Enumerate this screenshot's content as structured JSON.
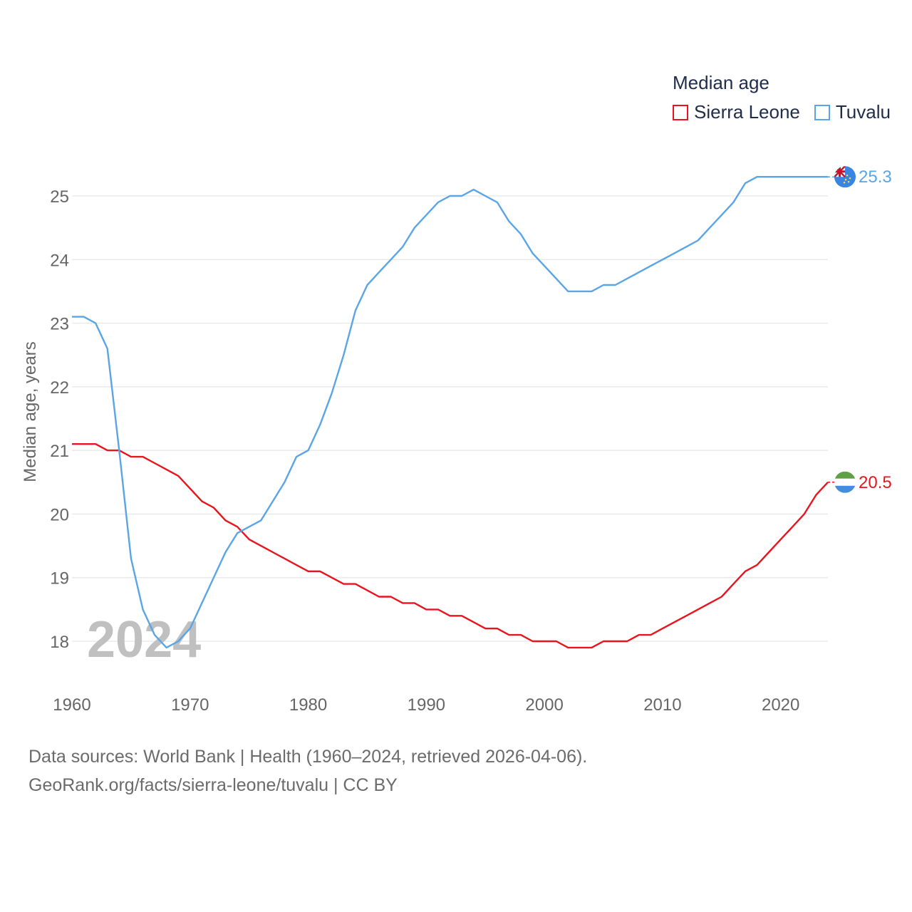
{
  "legend": {
    "title": "Median age"
  },
  "source": {
    "line1": "Data sources: World Bank | Health (1960–2024, retrieved 2026-04-06).",
    "line2": "GeoRank.org/facts/sierra-leone/tuvalu | CC BY"
  },
  "chart_data": {
    "type": "line",
    "year_label": "2024",
    "ylabel": "Median age, years",
    "xlabel": "",
    "xlim": [
      1960,
      2024
    ],
    "ylim": [
      17.4,
      25.6
    ],
    "x_ticks": [
      1960,
      1970,
      1980,
      1990,
      2000,
      2010,
      2020
    ],
    "y_ticks": [
      18,
      19,
      20,
      21,
      22,
      23,
      24,
      25
    ],
    "grid": true,
    "series": [
      {
        "name": "Sierra Leone",
        "color": "#e8141e",
        "end_label": "20.5",
        "flag": "sierra-leone-flag",
        "x": [
          1960,
          1961,
          1962,
          1963,
          1964,
          1965,
          1966,
          1967,
          1968,
          1969,
          1970,
          1971,
          1972,
          1973,
          1974,
          1975,
          1976,
          1977,
          1978,
          1979,
          1980,
          1981,
          1982,
          1983,
          1984,
          1985,
          1986,
          1987,
          1988,
          1989,
          1990,
          1991,
          1992,
          1993,
          1994,
          1995,
          1996,
          1997,
          1998,
          1999,
          2000,
          2001,
          2002,
          2003,
          2004,
          2005,
          2006,
          2007,
          2008,
          2009,
          2010,
          2011,
          2012,
          2013,
          2014,
          2015,
          2016,
          2017,
          2018,
          2019,
          2020,
          2021,
          2022,
          2023,
          2024
        ],
        "values": [
          21.1,
          21.1,
          21.1,
          21.0,
          21.0,
          20.9,
          20.9,
          20.8,
          20.7,
          20.6,
          20.4,
          20.2,
          20.1,
          19.9,
          19.8,
          19.6,
          19.5,
          19.4,
          19.3,
          19.2,
          19.1,
          19.1,
          19.0,
          18.9,
          18.9,
          18.8,
          18.7,
          18.7,
          18.6,
          18.6,
          18.5,
          18.5,
          18.4,
          18.4,
          18.3,
          18.2,
          18.2,
          18.1,
          18.1,
          18.0,
          18.0,
          18.0,
          17.9,
          17.9,
          17.9,
          18.0,
          18.0,
          18.0,
          18.1,
          18.1,
          18.2,
          18.3,
          18.4,
          18.5,
          18.6,
          18.7,
          18.9,
          19.1,
          19.2,
          19.4,
          19.6,
          19.8,
          20.0,
          20.3,
          20.5
        ]
      },
      {
        "name": "Tuvalu",
        "color": "#5aa5e6",
        "end_label": "25.3",
        "flag": "tuvalu-flag",
        "x": [
          1960,
          1961,
          1962,
          1963,
          1964,
          1965,
          1966,
          1967,
          1968,
          1969,
          1970,
          1971,
          1972,
          1973,
          1974,
          1975,
          1976,
          1977,
          1978,
          1979,
          1980,
          1981,
          1982,
          1983,
          1984,
          1985,
          1986,
          1987,
          1988,
          1989,
          1990,
          1991,
          1992,
          1993,
          1994,
          1995,
          1996,
          1997,
          1998,
          1999,
          2000,
          2001,
          2002,
          2003,
          2004,
          2005,
          2006,
          2007,
          2008,
          2009,
          2010,
          2011,
          2012,
          2013,
          2014,
          2015,
          2016,
          2017,
          2018,
          2019,
          2020,
          2021,
          2022,
          2023,
          2024
        ],
        "values": [
          23.1,
          23.1,
          23.0,
          22.6,
          21.0,
          19.3,
          18.5,
          18.1,
          17.9,
          18.0,
          18.2,
          18.6,
          19.0,
          19.4,
          19.7,
          19.8,
          19.9,
          20.2,
          20.5,
          20.9,
          21.0,
          21.4,
          21.9,
          22.5,
          23.2,
          23.6,
          23.8,
          24.0,
          24.2,
          24.5,
          24.7,
          24.9,
          25.0,
          25.0,
          25.1,
          25.0,
          24.9,
          24.6,
          24.4,
          24.1,
          23.9,
          23.7,
          23.5,
          23.5,
          23.5,
          23.6,
          23.6,
          23.7,
          23.8,
          23.9,
          24.0,
          24.1,
          24.2,
          24.3,
          24.5,
          24.7,
          24.9,
          25.2,
          25.3,
          25.3,
          25.3,
          25.3,
          25.3,
          25.3,
          25.3
        ]
      }
    ]
  }
}
